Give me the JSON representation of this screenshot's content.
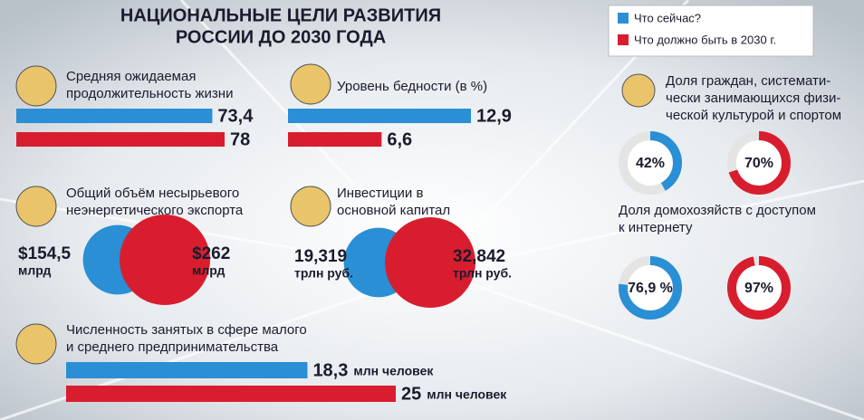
{
  "title": [
    "НАЦИОНАЛЬНЫЕ ЦЕЛИ РАЗВИТИЯ",
    "РОССИИ ДО 2030 ГОДА"
  ],
  "legend": [
    {
      "name": "Что сейчас?",
      "color": "#2a8fd4"
    },
    {
      "name": "Что должно быть в 2030 г.",
      "color": "#d81e2e"
    }
  ],
  "chart_data": [
    {
      "type": "bar",
      "title": [
        "Средняя ожидаемая",
        "продолжительность жизни"
      ],
      "values": [
        73.4,
        78
      ],
      "value_labels": [
        "73,4",
        "78"
      ]
    },
    {
      "type": "bar",
      "title": [
        "Уровень бедности (в %)"
      ],
      "values": [
        12.9,
        6.6
      ],
      "value_labels": [
        "12,9",
        "6,6"
      ]
    },
    {
      "type": "bubble",
      "title": [
        "Общий объём несырьевого",
        "неэнергетического экспорта"
      ],
      "values": [
        154.5,
        262
      ],
      "value_labels": [
        "$154,5",
        "$262"
      ],
      "unit": "млрд"
    },
    {
      "type": "bubble",
      "title": [
        "Инвестиции в",
        "основной капитал"
      ],
      "values": [
        19.319,
        32.842
      ],
      "value_labels": [
        "19,319",
        "32,842"
      ],
      "unit": "трлн руб."
    },
    {
      "type": "bar",
      "title": [
        "Численность занятых в сфере малого",
        "и среднего предпринимательства"
      ],
      "values": [
        18.3,
        25
      ],
      "value_labels": [
        "18,3",
        "25"
      ],
      "unit": "млн человек"
    },
    {
      "type": "donut",
      "title": [
        "Доля граждан, системати-",
        "чески занимающихся физи-",
        "ческой культурой и спортом"
      ],
      "values": [
        42,
        70
      ],
      "value_labels": [
        "42%",
        "70%"
      ]
    },
    {
      "type": "donut",
      "title": [
        "Доля домохозяйств с доступом",
        "к интернету"
      ],
      "values": [
        76.9,
        97
      ],
      "value_labels": [
        "76,9 %",
        "97%"
      ]
    }
  ]
}
